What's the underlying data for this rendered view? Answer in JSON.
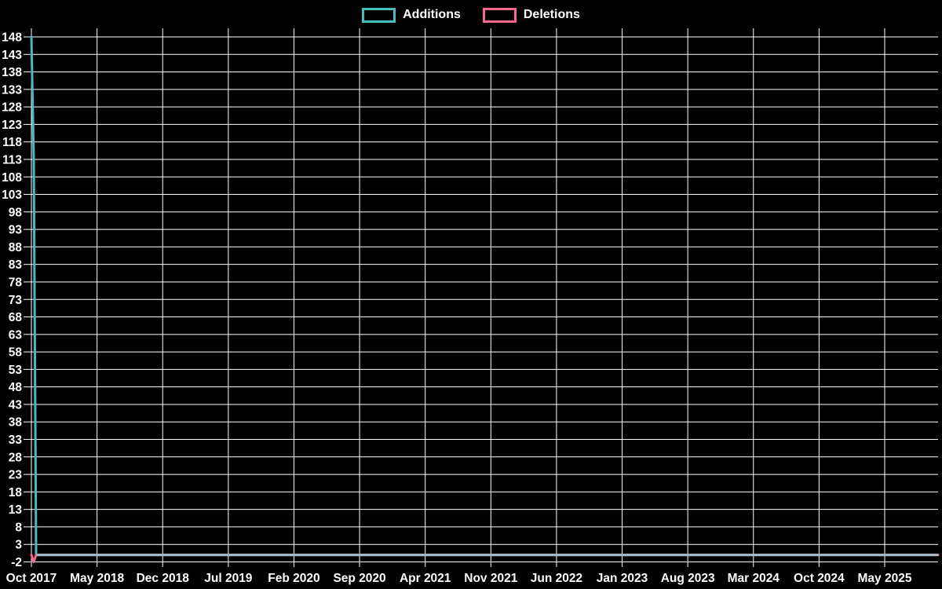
{
  "page": {
    "background_color": "#000000",
    "text_color": "#FFFFFF",
    "grid_color": "#FFFFFF"
  },
  "chart_data": {
    "type": "line",
    "title": "",
    "legend_position": "top",
    "legend": [
      {
        "label": "Additions",
        "color": "#4ABBBD"
      },
      {
        "label": "Deletions",
        "color": "#F4698C"
      }
    ],
    "x_axis": {
      "labels": [
        "Oct 2017",
        "May 2018",
        "Dec 2018",
        "Jul 2019",
        "Feb 2020",
        "Sep 2020",
        "Apr 2021",
        "Nov 2021",
        "Jun 2022",
        "Jan 2023",
        "Aug 2023",
        "Mar 2024",
        "Oct 2024",
        "May 2025"
      ],
      "label_interval_months": 7,
      "grid": true
    },
    "y_axis": {
      "ticks": [
        148,
        143,
        138,
        133,
        128,
        123,
        118,
        113,
        108,
        103,
        98,
        93,
        88,
        83,
        78,
        73,
        68,
        63,
        58,
        53,
        48,
        43,
        38,
        33,
        28,
        23,
        18,
        13,
        8,
        3,
        -2
      ],
      "min": -2,
      "max": 148,
      "step": 5,
      "grid": true
    },
    "series": [
      {
        "name": "Additions",
        "color": "#4ABBBD",
        "points": [
          {
            "month_offset": 0,
            "value": 148
          },
          {
            "month_offset": 0.25,
            "value": 113
          },
          {
            "month_offset": 0.5,
            "value": 0
          },
          {
            "month_offset": 96.7,
            "value": 0
          }
        ]
      },
      {
        "name": "Deletions",
        "color": "#F4698C",
        "points": [
          {
            "month_offset": 0,
            "value": 0
          },
          {
            "month_offset": 0.25,
            "value": -2
          },
          {
            "month_offset": 0.5,
            "value": 0
          },
          {
            "month_offset": 96.7,
            "value": 0
          }
        ]
      }
    ],
    "overlap_line_color": "#A3BBC7"
  }
}
